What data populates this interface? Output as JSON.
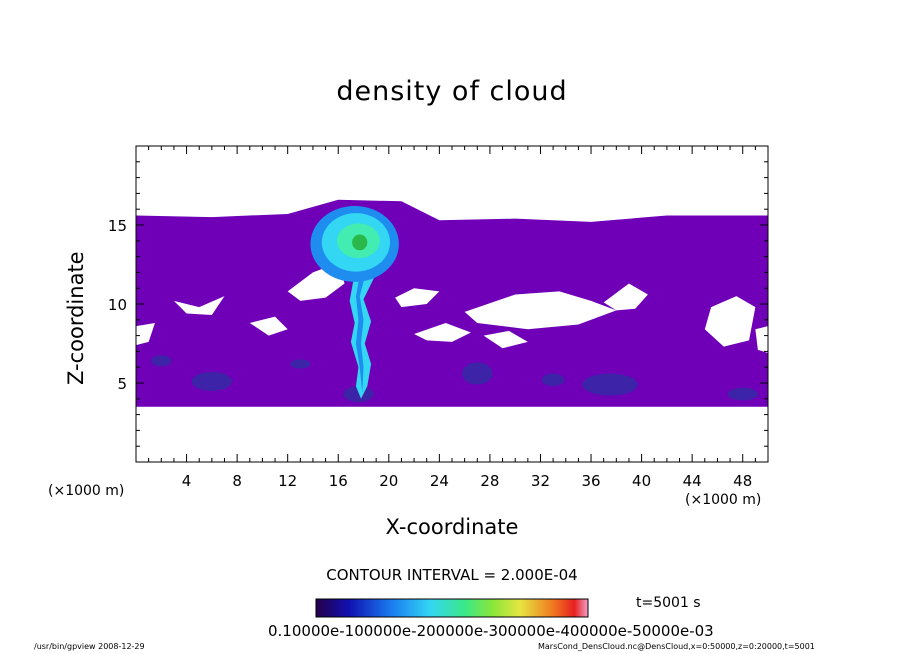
{
  "chart_data": {
    "type": "heatmap",
    "title": "density of cloud",
    "xlabel": "X-coordinate",
    "ylabel": "Z-coordinate",
    "x_unit": "(×1000 m)",
    "y_unit": "(×1000 m)",
    "xlim": [
      0,
      50
    ],
    "ylim": [
      0,
      20
    ],
    "x_ticks": [
      4,
      8,
      12,
      16,
      20,
      24,
      28,
      32,
      36,
      40,
      44,
      48
    ],
    "y_ticks": [
      5,
      10,
      15
    ],
    "contour_interval": "CONTOUR INTERVAL = 2.000E-04",
    "time_label": "t=5001 s",
    "colorbar_labels": "0.10000e-100000e-200000e-300000e-400000e-50000e-03",
    "colors": {
      "base_layer": "#6f00b8",
      "low_patch": "#3d23a8",
      "plume_outer": "#1f8cf0",
      "plume_mid": "#33d6f3",
      "plume_core": "#43ecb0",
      "plume_peak": "#2ab84a"
    },
    "regions": [
      {
        "name": "cloud layer",
        "x_range": [
          0,
          50
        ],
        "z_range": [
          3.5,
          15.5
        ],
        "value_level": "low"
      },
      {
        "name": "plume",
        "x_center": 18,
        "z_range": [
          3.8,
          16.2
        ],
        "value_level": "high"
      }
    ]
  },
  "footer": {
    "left": "/usr/bin/gpview  2008-12-29",
    "right": "MarsCond_DensCloud.nc@DensCloud,x=0:50000,z=0:20000,t=5001"
  }
}
